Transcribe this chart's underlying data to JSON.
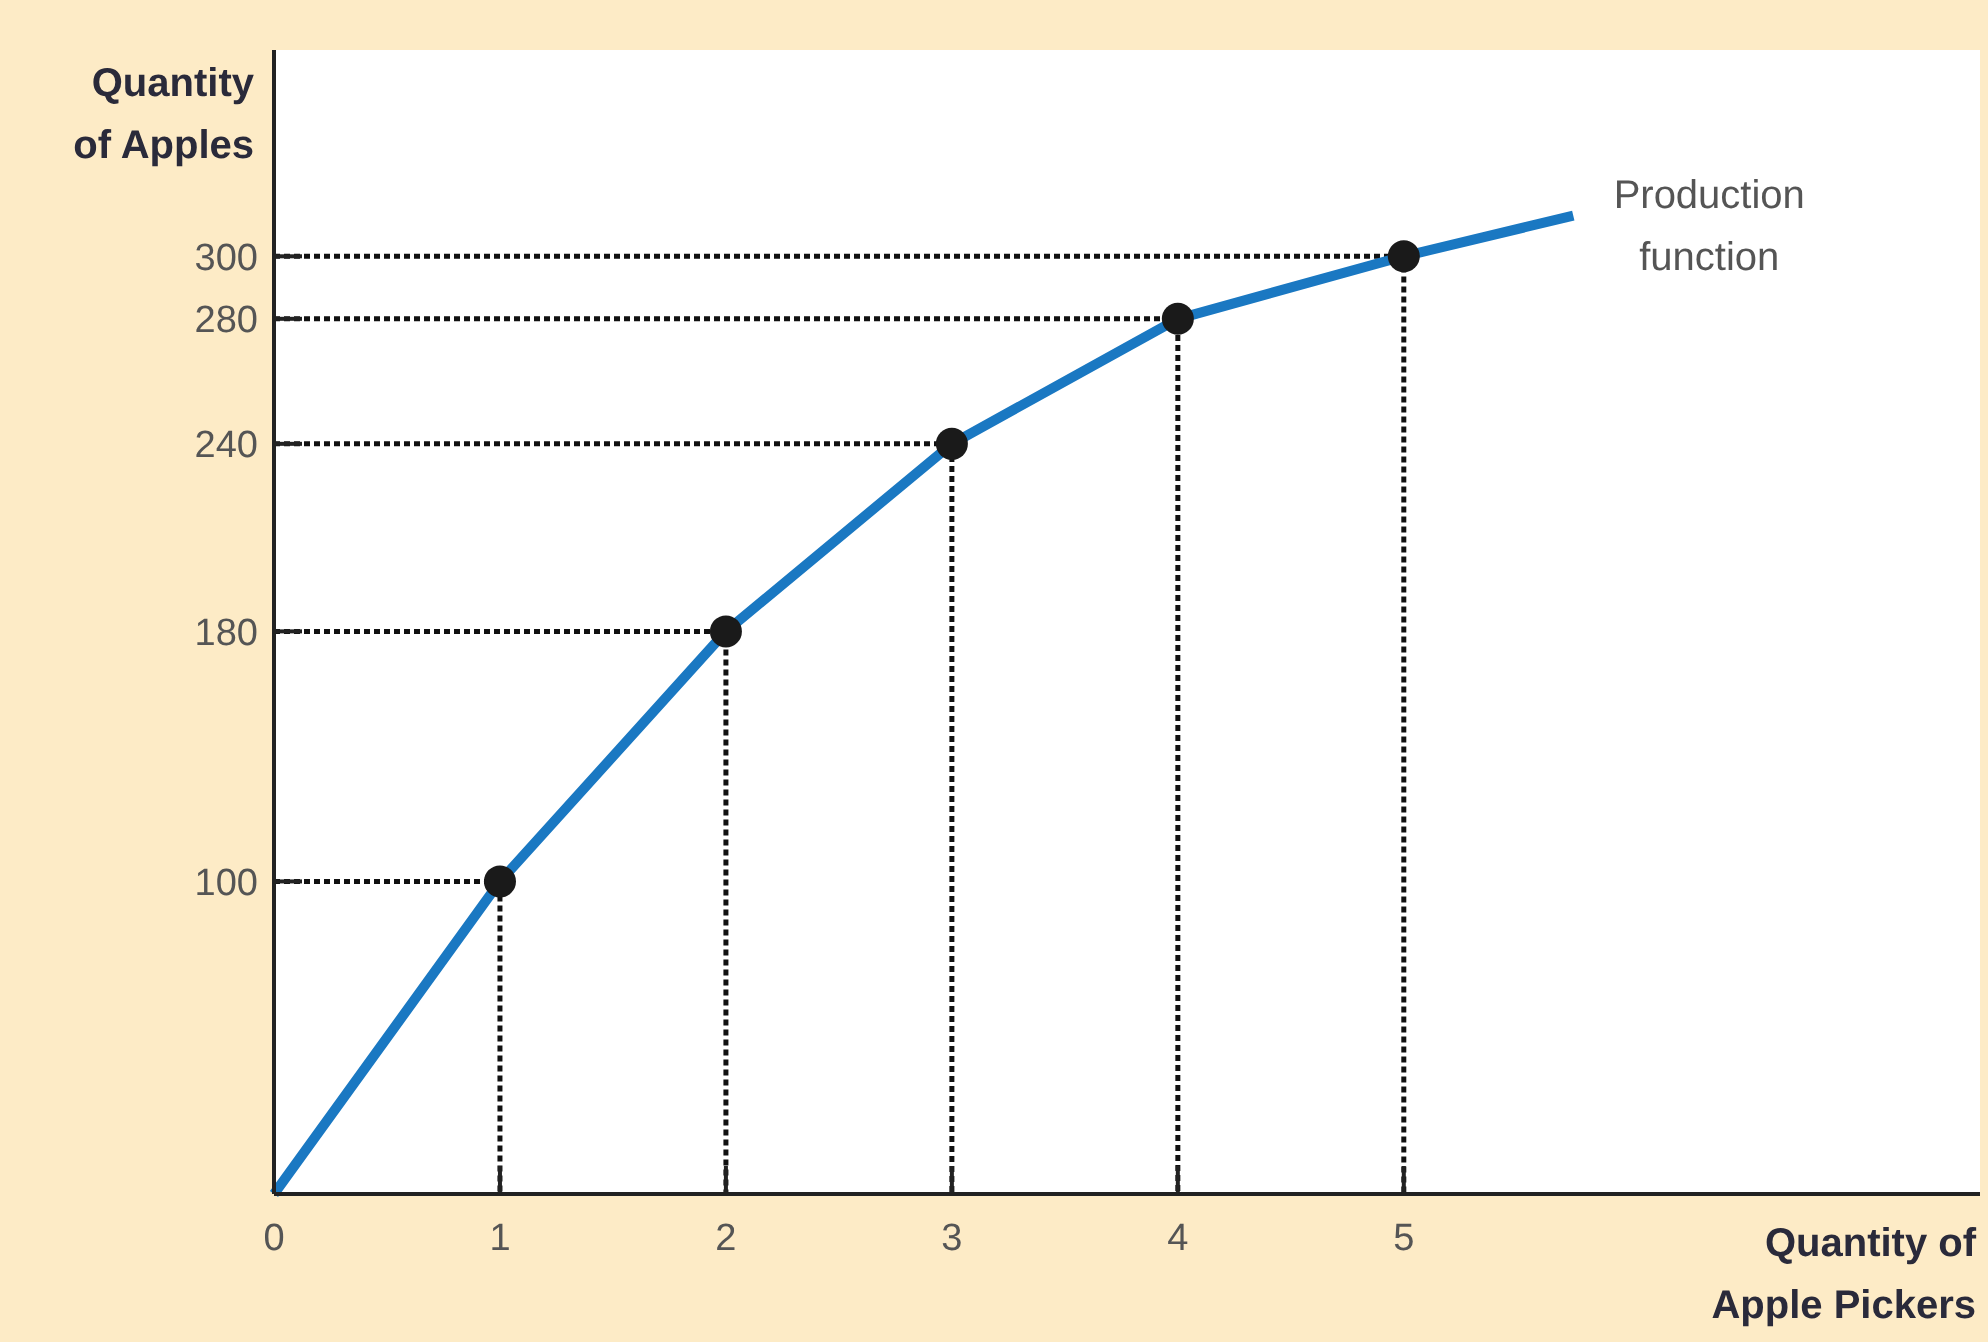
{
  "chart_data": {
    "type": "line",
    "xlabel": "Quantity of Apple Pickers",
    "ylabel": "Quantity of Apples",
    "xlim": [
      0,
      7.55
    ],
    "ylim": [
      0,
      366
    ],
    "xticks": [
      0,
      1,
      2,
      3,
      4,
      5
    ],
    "yticks": [
      100,
      180,
      240,
      280,
      300
    ],
    "series": [
      {
        "name": "Production function",
        "color": "#1a78c2",
        "marker": "none",
        "x": [
          0,
          1,
          2,
          3,
          4,
          5,
          5.75
        ],
        "values": [
          0,
          100,
          180,
          240,
          280,
          300,
          313
        ]
      },
      {
        "color": "#111111",
        "line_style": "dotted",
        "marker": "none",
        "x": [
          0,
          1,
          1
        ],
        "values": [
          100,
          100,
          0
        ]
      },
      {
        "color": "#111111",
        "line_style": "dotted",
        "marker": "none",
        "x": [
          0,
          2,
          2
        ],
        "values": [
          180,
          180,
          0
        ]
      },
      {
        "color": "#111111",
        "line_style": "dotted",
        "marker": "none",
        "x": [
          0,
          3,
          3
        ],
        "values": [
          240,
          240,
          0
        ]
      },
      {
        "color": "#111111",
        "line_style": "dotted",
        "marker": "none",
        "x": [
          0,
          4,
          4
        ],
        "values": [
          280,
          280,
          0
        ]
      },
      {
        "color": "#111111",
        "line_style": "dotted",
        "marker": "none",
        "x": [
          0,
          5,
          5
        ],
        "values": [
          300,
          300,
          0
        ]
      },
      {
        "type": "scatter",
        "color": "#1a1a1a",
        "marker": "circle",
        "x": [
          1,
          2,
          3,
          4,
          5
        ],
        "values": [
          100,
          180,
          240,
          280,
          300
        ]
      }
    ]
  }
}
